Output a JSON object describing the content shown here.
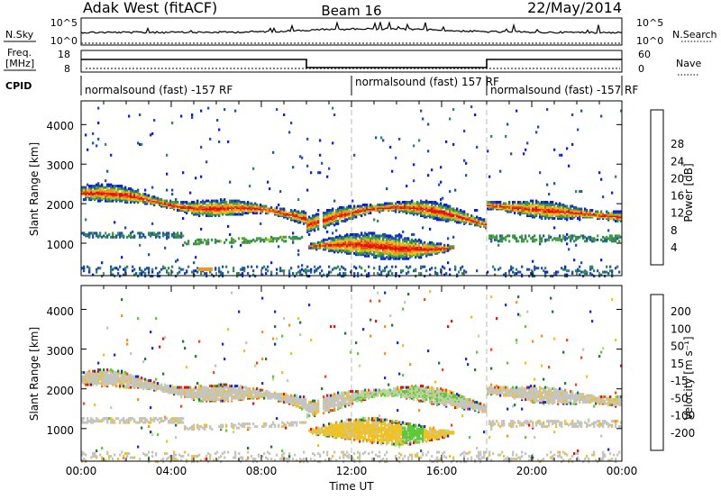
{
  "header": {
    "station": "Adak West (fitACF)",
    "beam": "Beam 16",
    "date": "22/May/2014"
  },
  "top_panels": {
    "nsky_label": "N.Sky",
    "nsearch_label": "N.Search",
    "freq_label": "Freq.",
    "freq_unit": "[MHz]",
    "nave_label": "Nave",
    "cpid_label": "CPID",
    "noise_ticks_left": [
      "10^5",
      "10^0"
    ],
    "noise_ticks_right": [
      "10^5",
      "10^0"
    ],
    "freq_ticks": [
      "18",
      "8"
    ],
    "nave_ticks": [
      "60",
      "0"
    ],
    "cpid_segments": [
      {
        "label": "normalsound (fast) -157 RF",
        "start_h": 0,
        "end_h": 12
      },
      {
        "label": "normalsound (fast) 157 RF",
        "start_h": 12,
        "end_h": 18
      },
      {
        "label": "normalsound (fast) -157 RF",
        "start_h": 18,
        "end_h": 24
      }
    ]
  },
  "chart_data": [
    {
      "type": "heatmap",
      "name": "power",
      "ylabel": "Slant Range [km]",
      "yticks": [
        "1000",
        "2000",
        "3000",
        "4000"
      ],
      "ylim": [
        180,
        4600
      ],
      "xlim": [
        0,
        24
      ],
      "colorbar_label": "Power [dB]",
      "colorbar_ticks": [
        "4",
        "8",
        "12",
        "16",
        "20",
        "24",
        "28"
      ],
      "colors": [
        "#0b1de0",
        "#1f52a8",
        "#2d8a55",
        "#4fa03a",
        "#a6c42a",
        "#f2c11c",
        "#f5931a",
        "#ee4a1a",
        "#e0140f"
      ]
    },
    {
      "type": "heatmap",
      "name": "velocity",
      "ylabel": "Slant Range [km]",
      "yticks": [
        "1000",
        "2000",
        "3000",
        "4000"
      ],
      "ylim": [
        180,
        4600
      ],
      "xlim": [
        0,
        24
      ],
      "xlabel": "Time UT",
      "xticks": [
        "00:00",
        "04:00",
        "08:00",
        "12:00",
        "16:00",
        "20:00",
        "00:00"
      ],
      "colorbar_label": "Velocity [m s⁻¹]",
      "colorbar_ticks": [
        "200",
        "100",
        "50",
        "15",
        "-15",
        "-50",
        "-100",
        "-200"
      ],
      "colors": [
        "#1a2fc8",
        "#1f7a3a",
        "#5cc936",
        "#aee28a",
        "#c4c4c0",
        "#f1c21f",
        "#f6921c",
        "#ee4a18",
        "#e0140f"
      ]
    }
  ]
}
